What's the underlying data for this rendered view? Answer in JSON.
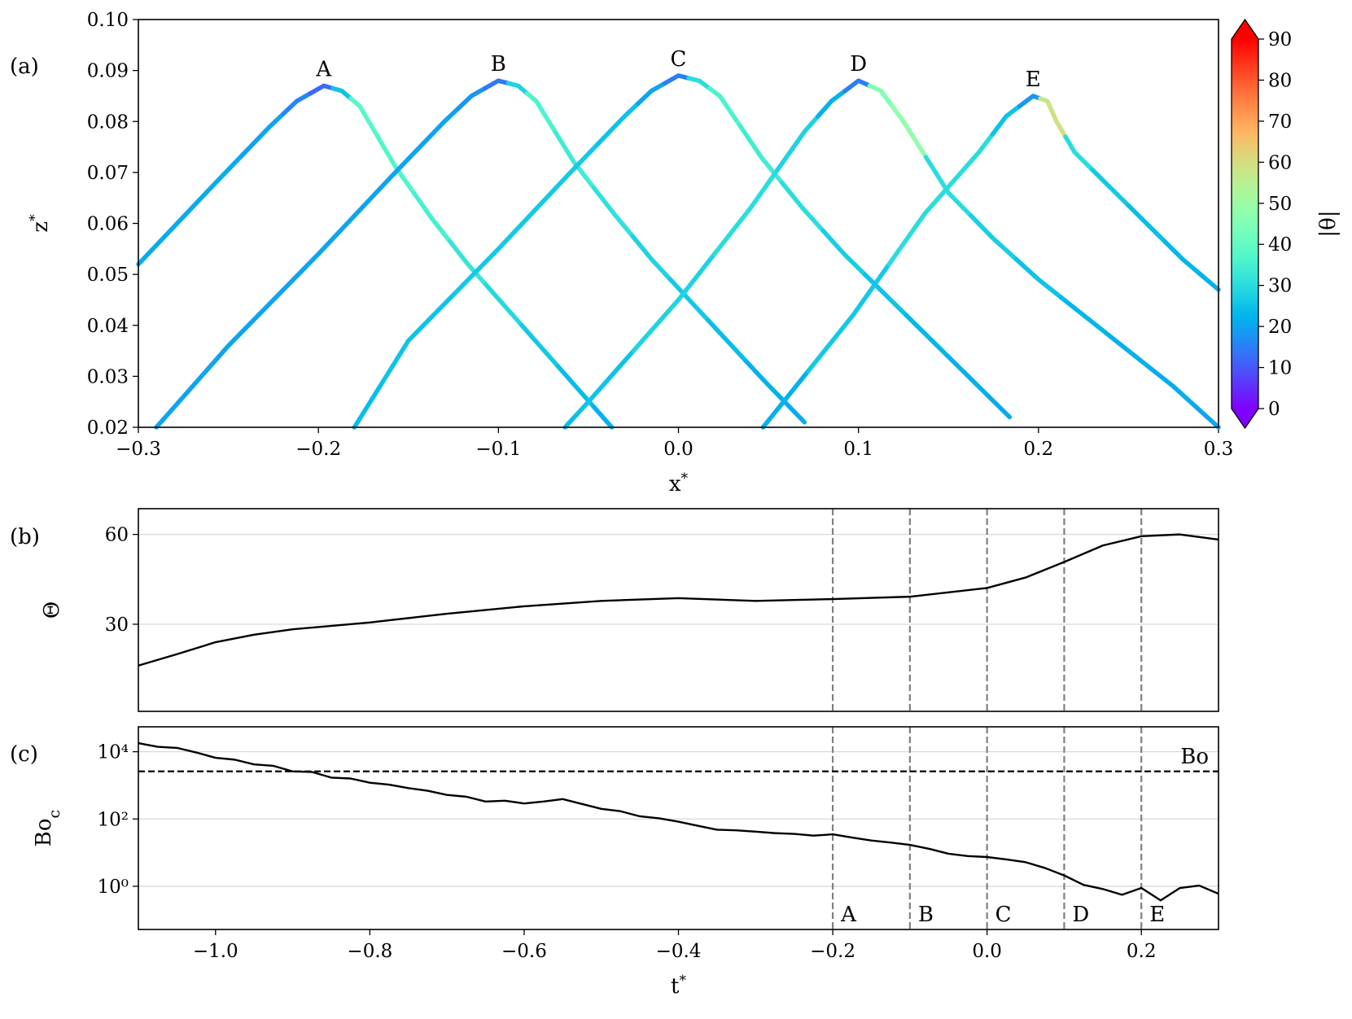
{
  "chart_data": [
    {
      "type": "colored_line",
      "panel_label": "(a)",
      "xlabel": "x",
      "xlabel_sup": "*",
      "ylabel": "z",
      "ylabel_sup": "*",
      "xlim": [
        -0.3,
        0.3
      ],
      "ylim": [
        0.02,
        0.1
      ],
      "xticks": [
        {
          "value": -0.3,
          "label": "−0.3"
        },
        {
          "value": -0.2,
          "label": "−0.2"
        },
        {
          "value": -0.1,
          "label": "−0.1"
        },
        {
          "value": 0,
          "label": "0.0"
        },
        0.1,
        0.2,
        0.3
      ],
      "yticks": [
        0.02,
        0.03,
        0.04,
        0.05,
        0.06,
        0.07,
        0.08,
        0.09,
        {
          "value": 0.1,
          "label": "0.10"
        }
      ],
      "colorbar": {
        "label": "|θ|",
        "colormap": "rainbow",
        "clim": [
          0,
          90
        ],
        "ticks": [
          0,
          10,
          20,
          30,
          40,
          50,
          60,
          70,
          80,
          90
        ],
        "extend": "both"
      },
      "series": [
        {
          "name": "A",
          "x": [
            -0.3,
            -0.257,
            -0.227,
            -0.212,
            -0.197,
            -0.187,
            -0.177,
            -0.157,
            -0.137,
            -0.117,
            -0.097,
            -0.077,
            -0.057,
            -0.037
          ],
          "y": [
            0.052,
            0.068,
            0.079,
            0.084,
            0.087,
            0.086,
            0.083,
            0.071,
            0.061,
            0.052,
            0.044,
            0.036,
            0.028,
            0.02
          ],
          "theta": [
            21,
            21,
            20,
            16,
            12,
            25,
            38,
            37,
            35,
            32,
            29,
            26,
            24,
            22
          ]
        },
        {
          "name": "B",
          "x": [
            -0.29,
            -0.25,
            -0.2,
            -0.16,
            -0.13,
            -0.115,
            -0.1,
            -0.089,
            -0.079,
            -0.058,
            -0.036,
            -0.015,
            0.006,
            0.027,
            0.048,
            0.07
          ],
          "y": [
            0.02,
            0.036,
            0.054,
            0.069,
            0.08,
            0.085,
            0.088,
            0.087,
            0.084,
            0.072,
            0.062,
            0.053,
            0.045,
            0.037,
            0.029,
            0.021
          ],
          "theta": [
            20,
            20,
            20,
            20,
            20,
            18,
            14,
            28,
            36,
            34,
            31,
            28,
            26,
            24,
            22,
            21
          ]
        },
        {
          "name": "C",
          "x": [
            -0.18,
            -0.15,
            -0.1,
            -0.06,
            -0.03,
            -0.015,
            0,
            0.0115,
            0.023,
            0.046,
            0.069,
            0.092,
            0.115,
            0.138,
            0.161,
            0.184
          ],
          "y": [
            0.02,
            0.037,
            0.055,
            0.07,
            0.081,
            0.086,
            0.089,
            0.088,
            0.085,
            0.073,
            0.063,
            0.054,
            0.046,
            0.038,
            0.03,
            0.022
          ],
          "theta": [
            24,
            25,
            26,
            26,
            25,
            20,
            15,
            30,
            36,
            34,
            30,
            27,
            25,
            23,
            22,
            21
          ]
        },
        {
          "name": "D",
          "x": [
            -0.063,
            -0.05,
            0,
            0.04,
            0.07,
            0.085,
            0.1,
            0.1125,
            0.125,
            0.15,
            0.175,
            0.2,
            0.225,
            0.25,
            0.275,
            0.3
          ],
          "y": [
            0.02,
            0.025,
            0.045,
            0.063,
            0.078,
            0.084,
            0.088,
            0.086,
            0.08,
            0.066,
            0.057,
            0.049,
            0.042,
            0.035,
            0.028,
            0.02
          ],
          "theta": [
            24,
            25,
            28,
            30,
            28,
            22,
            15,
            45,
            48,
            30,
            27,
            25,
            23,
            22,
            21,
            20
          ]
        },
        {
          "name": "E",
          "x": [
            0.047,
            0.097,
            0.137,
            0.167,
            0.182,
            0.197,
            0.205,
            0.21,
            0.22,
            0.24,
            0.26,
            0.28,
            0.3
          ],
          "y": [
            0.02,
            0.042,
            0.062,
            0.074,
            0.081,
            0.085,
            0.084,
            0.08,
            0.074,
            0.067,
            0.06,
            0.053,
            0.047
          ],
          "theta": [
            22,
            26,
            30,
            30,
            25,
            18,
            58,
            60,
            30,
            26,
            24,
            23,
            22
          ]
        }
      ]
    },
    {
      "type": "line",
      "panel_label": "(b)",
      "ylabel": "Θ",
      "color": "#000000",
      "xlim": [
        -1.1,
        0.3
      ],
      "ylim": [
        0.9,
        68.6
      ],
      "yticks": [
        30,
        60
      ],
      "grid": true,
      "vlines": [
        -0.2,
        -0.1,
        0,
        0.1,
        0.2
      ],
      "x": [
        -1.1,
        -1.05,
        -1.0,
        -0.95,
        -0.9,
        -0.8,
        -0.7,
        -0.6,
        -0.5,
        -0.4,
        -0.3,
        -0.2,
        -0.1,
        0,
        0.05,
        0.1,
        0.15,
        0.2,
        0.25,
        0.3
      ],
      "values": [
        16.2,
        20,
        24,
        26.5,
        28.3,
        30.6,
        33.5,
        36,
        37.8,
        38.7,
        37.8,
        38.4,
        39.2,
        42.1,
        45.6,
        50.8,
        56.3,
        59.4,
        60,
        58.3
      ]
    },
    {
      "type": "line",
      "panel_label": "(c)",
      "ylabel": "Bo",
      "ylabel_sub": "c",
      "xlabel": "t",
      "xlabel_sup": "*",
      "color": "#000000",
      "log_y": true,
      "grid": true,
      "xlim": [
        -1.1,
        0.3
      ],
      "ylim": [
        0.052,
        55000
      ],
      "xticks": [
        {
          "value": -1.0,
          "label": "−1.0"
        },
        {
          "value": -0.8,
          "label": "−0.8"
        },
        {
          "value": -0.6,
          "label": "−0.6"
        },
        {
          "value": -0.4,
          "label": "−0.4"
        },
        {
          "value": -0.2,
          "label": "−0.2"
        },
        {
          "value": 0,
          "label": "0.0"
        },
        0.2
      ],
      "yticks": [
        {
          "value": 1,
          "label": "10⁰"
        },
        {
          "value": 100,
          "label": "10²"
        },
        {
          "value": 10000,
          "label": "10⁴"
        }
      ],
      "hline": {
        "value": 2600,
        "label": "Bo"
      },
      "markers": [
        {
          "value": -0.2,
          "label": "A"
        },
        {
          "value": -0.1,
          "label": "B"
        },
        {
          "value": 0,
          "label": "C"
        },
        {
          "value": 0.1,
          "label": "D"
        },
        {
          "value": 0.2,
          "label": "E"
        }
      ],
      "x": [
        -1.1,
        -1.075,
        -1.05,
        -1.025,
        -1.0,
        -0.975,
        -0.95,
        -0.925,
        -0.9,
        -0.875,
        -0.85,
        -0.825,
        -0.8,
        -0.775,
        -0.75,
        -0.725,
        -0.7,
        -0.675,
        -0.65,
        -0.625,
        -0.6,
        -0.575,
        -0.55,
        -0.525,
        -0.5,
        -0.475,
        -0.45,
        -0.425,
        -0.4,
        -0.375,
        -0.35,
        -0.325,
        -0.3,
        -0.275,
        -0.25,
        -0.225,
        -0.2,
        -0.175,
        -0.15,
        -0.125,
        -0.1,
        -0.075,
        -0.05,
        -0.025,
        0,
        0.025,
        0.05,
        0.075,
        0.1,
        0.125,
        0.15,
        0.175,
        0.2,
        0.225,
        0.25,
        0.275,
        0.3
      ],
      "values": [
        18000,
        14000,
        13000,
        9500,
        6600,
        5800,
        4200,
        3800,
        2600,
        2500,
        1700,
        1600,
        1200,
        1050,
        830,
        690,
        520,
        460,
        330,
        350,
        290,
        330,
        390,
        280,
        200,
        170,
        120,
        105,
        83,
        63,
        48,
        46,
        42,
        38,
        36,
        32,
        35,
        28,
        23,
        20,
        17,
        13,
        9.3,
        7.9,
        7.4,
        6.3,
        5.2,
        3.5,
        2.1,
        1.1,
        0.83,
        0.56,
        0.89,
        0.38,
        0.89,
        1.05,
        0.6
      ]
    }
  ]
}
